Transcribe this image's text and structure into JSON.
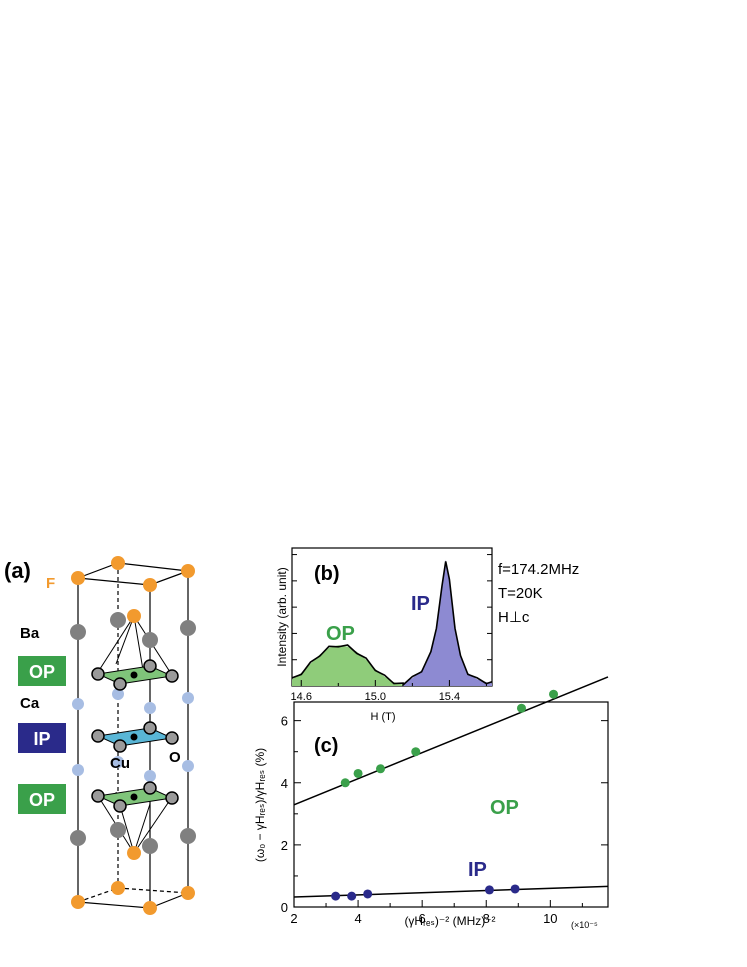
{
  "colors": {
    "op_green": "#3aa04a",
    "ip_blue": "#2a2a8a",
    "op_fill": "#8fcc7a",
    "ip_fill": "#8d8ad2",
    "f_orange": "#f29a2e",
    "ba_gray": "#808080",
    "ca_lightblue": "#a7bde3",
    "cu_plane_green": "#7fc47a",
    "cu_plane_blue": "#59b6d6"
  },
  "panel_a": {
    "label": "(a)",
    "atoms": {
      "F": "F",
      "Ba": "Ba",
      "Ca": "Ca",
      "Cu": "Cu",
      "O": "O"
    },
    "layer_badges": [
      "OP",
      "IP",
      "OP"
    ]
  },
  "panel_b": {
    "label": "(b)",
    "conditions": [
      "f=174.2MHz",
      "T=20K",
      "H⊥c"
    ],
    "ylabel": "Intensity (arb. unit)",
    "xlabel": "H (T)",
    "op_label": "OP",
    "ip_label": "IP"
  },
  "panel_c": {
    "label": "(c)",
    "ylabel": "(ω₀ − γHᵣₑₛ)/γHᵣₑₛ (%)",
    "xlabel": "(γHᵣₑₛ)⁻² (MHz)⁻²",
    "x_scale": "(×10⁻⁵",
    "op_label": "OP",
    "ip_label": "IP"
  },
  "chart_data": [
    {
      "type": "line",
      "title": "(b)",
      "xlabel": "H (T)",
      "ylabel": "Intensity (arb. unit)",
      "xlim": [
        14.55,
        15.63
      ],
      "ylim": [
        0,
        1.05
      ],
      "xticks": [
        14.6,
        15.0,
        15.4
      ],
      "series": [
        {
          "name": "OP",
          "x": [
            14.55,
            14.6,
            14.65,
            14.7,
            14.75,
            14.8,
            14.85,
            14.9,
            14.95,
            15.0,
            15.05,
            15.1,
            15.15
          ],
          "y": [
            0.05,
            0.1,
            0.17,
            0.24,
            0.29,
            0.31,
            0.3,
            0.26,
            0.2,
            0.13,
            0.07,
            0.03,
            0.01
          ]
        },
        {
          "name": "IP",
          "x": [
            15.15,
            15.2,
            15.25,
            15.3,
            15.33,
            15.36,
            15.38,
            15.4,
            15.43,
            15.46,
            15.5,
            15.55,
            15.6,
            15.63
          ],
          "y": [
            0.02,
            0.06,
            0.12,
            0.25,
            0.45,
            0.75,
            0.96,
            0.8,
            0.45,
            0.22,
            0.1,
            0.05,
            0.03,
            0.02
          ]
        }
      ]
    },
    {
      "type": "scatter",
      "title": "(c)",
      "xlabel": "(γHᵣₑₛ)⁻² (MHz)⁻²",
      "ylabel": "(ω₀ − γHᵣₑₛ)/γHᵣₑₛ (%)",
      "x_multiplier": "×10⁻⁵",
      "xlim": [
        2,
        11.8
      ],
      "ylim": [
        0,
        6.6
      ],
      "xticks": [
        2,
        4,
        6,
        8,
        10
      ],
      "yticks": [
        0,
        2,
        4,
        6
      ],
      "series": [
        {
          "name": "OP",
          "x": [
            3.6,
            4.0,
            4.7,
            5.8,
            9.1,
            10.1
          ],
          "y": [
            4.0,
            4.3,
            4.45,
            5.0,
            6.4,
            6.85
          ],
          "fit": {
            "slope": 0.42,
            "intercept": 2.45
          }
        },
        {
          "name": "IP",
          "x": [
            3.3,
            3.8,
            4.3,
            8.1,
            8.9
          ],
          "y": [
            0.35,
            0.35,
            0.42,
            0.55,
            0.58
          ],
          "fit": {
            "slope": 0.035,
            "intercept": 0.25
          }
        }
      ]
    }
  ]
}
